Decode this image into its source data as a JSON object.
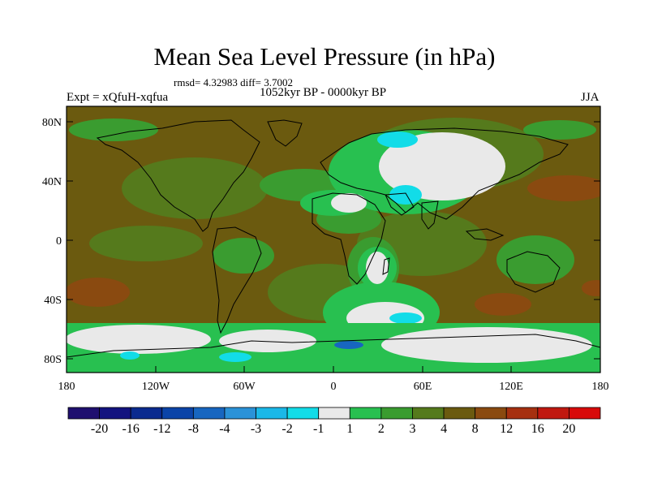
{
  "title": "Mean Sea Level Pressure (in hPa)",
  "stats": "rmsd= 4.32983 diff= 3.7002",
  "period": "1052kyr BP - 0000kyr BP",
  "experiment": "Expt = xQfuH-xqfua",
  "season": "JJA",
  "lat_ticks": [
    "80N",
    "40N",
    "0",
    "40S",
    "80S"
  ],
  "lon_ticks": [
    "180",
    "120W",
    "60W",
    "0",
    "60E",
    "120E",
    "180"
  ],
  "colorbar": {
    "labels": [
      "-20",
      "-16",
      "-12",
      "-8",
      "-4",
      "-3",
      "-2",
      "-1",
      "1",
      "2",
      "3",
      "4",
      "8",
      "12",
      "16",
      "20"
    ],
    "colors": [
      "#1f0f6f",
      "#13137f",
      "#0a2a8f",
      "#0b44a8",
      "#1766c0",
      "#2a92d8",
      "#1ab8e8",
      "#12dce8",
      "#e9e9e9",
      "#28c050",
      "#3a9c30",
      "#557a1c",
      "#6b5a0f",
      "#8a4a10",
      "#a63010",
      "#c01810",
      "#d80a0a"
    ]
  },
  "map_colors": {
    "dominant": "#6b5a0f",
    "olive": "#557a1c",
    "green": "#3a9c30",
    "bright": "#28c050",
    "white": "#e9e9e9",
    "cyan": "#12dce8",
    "brown": "#8a4a10"
  }
}
